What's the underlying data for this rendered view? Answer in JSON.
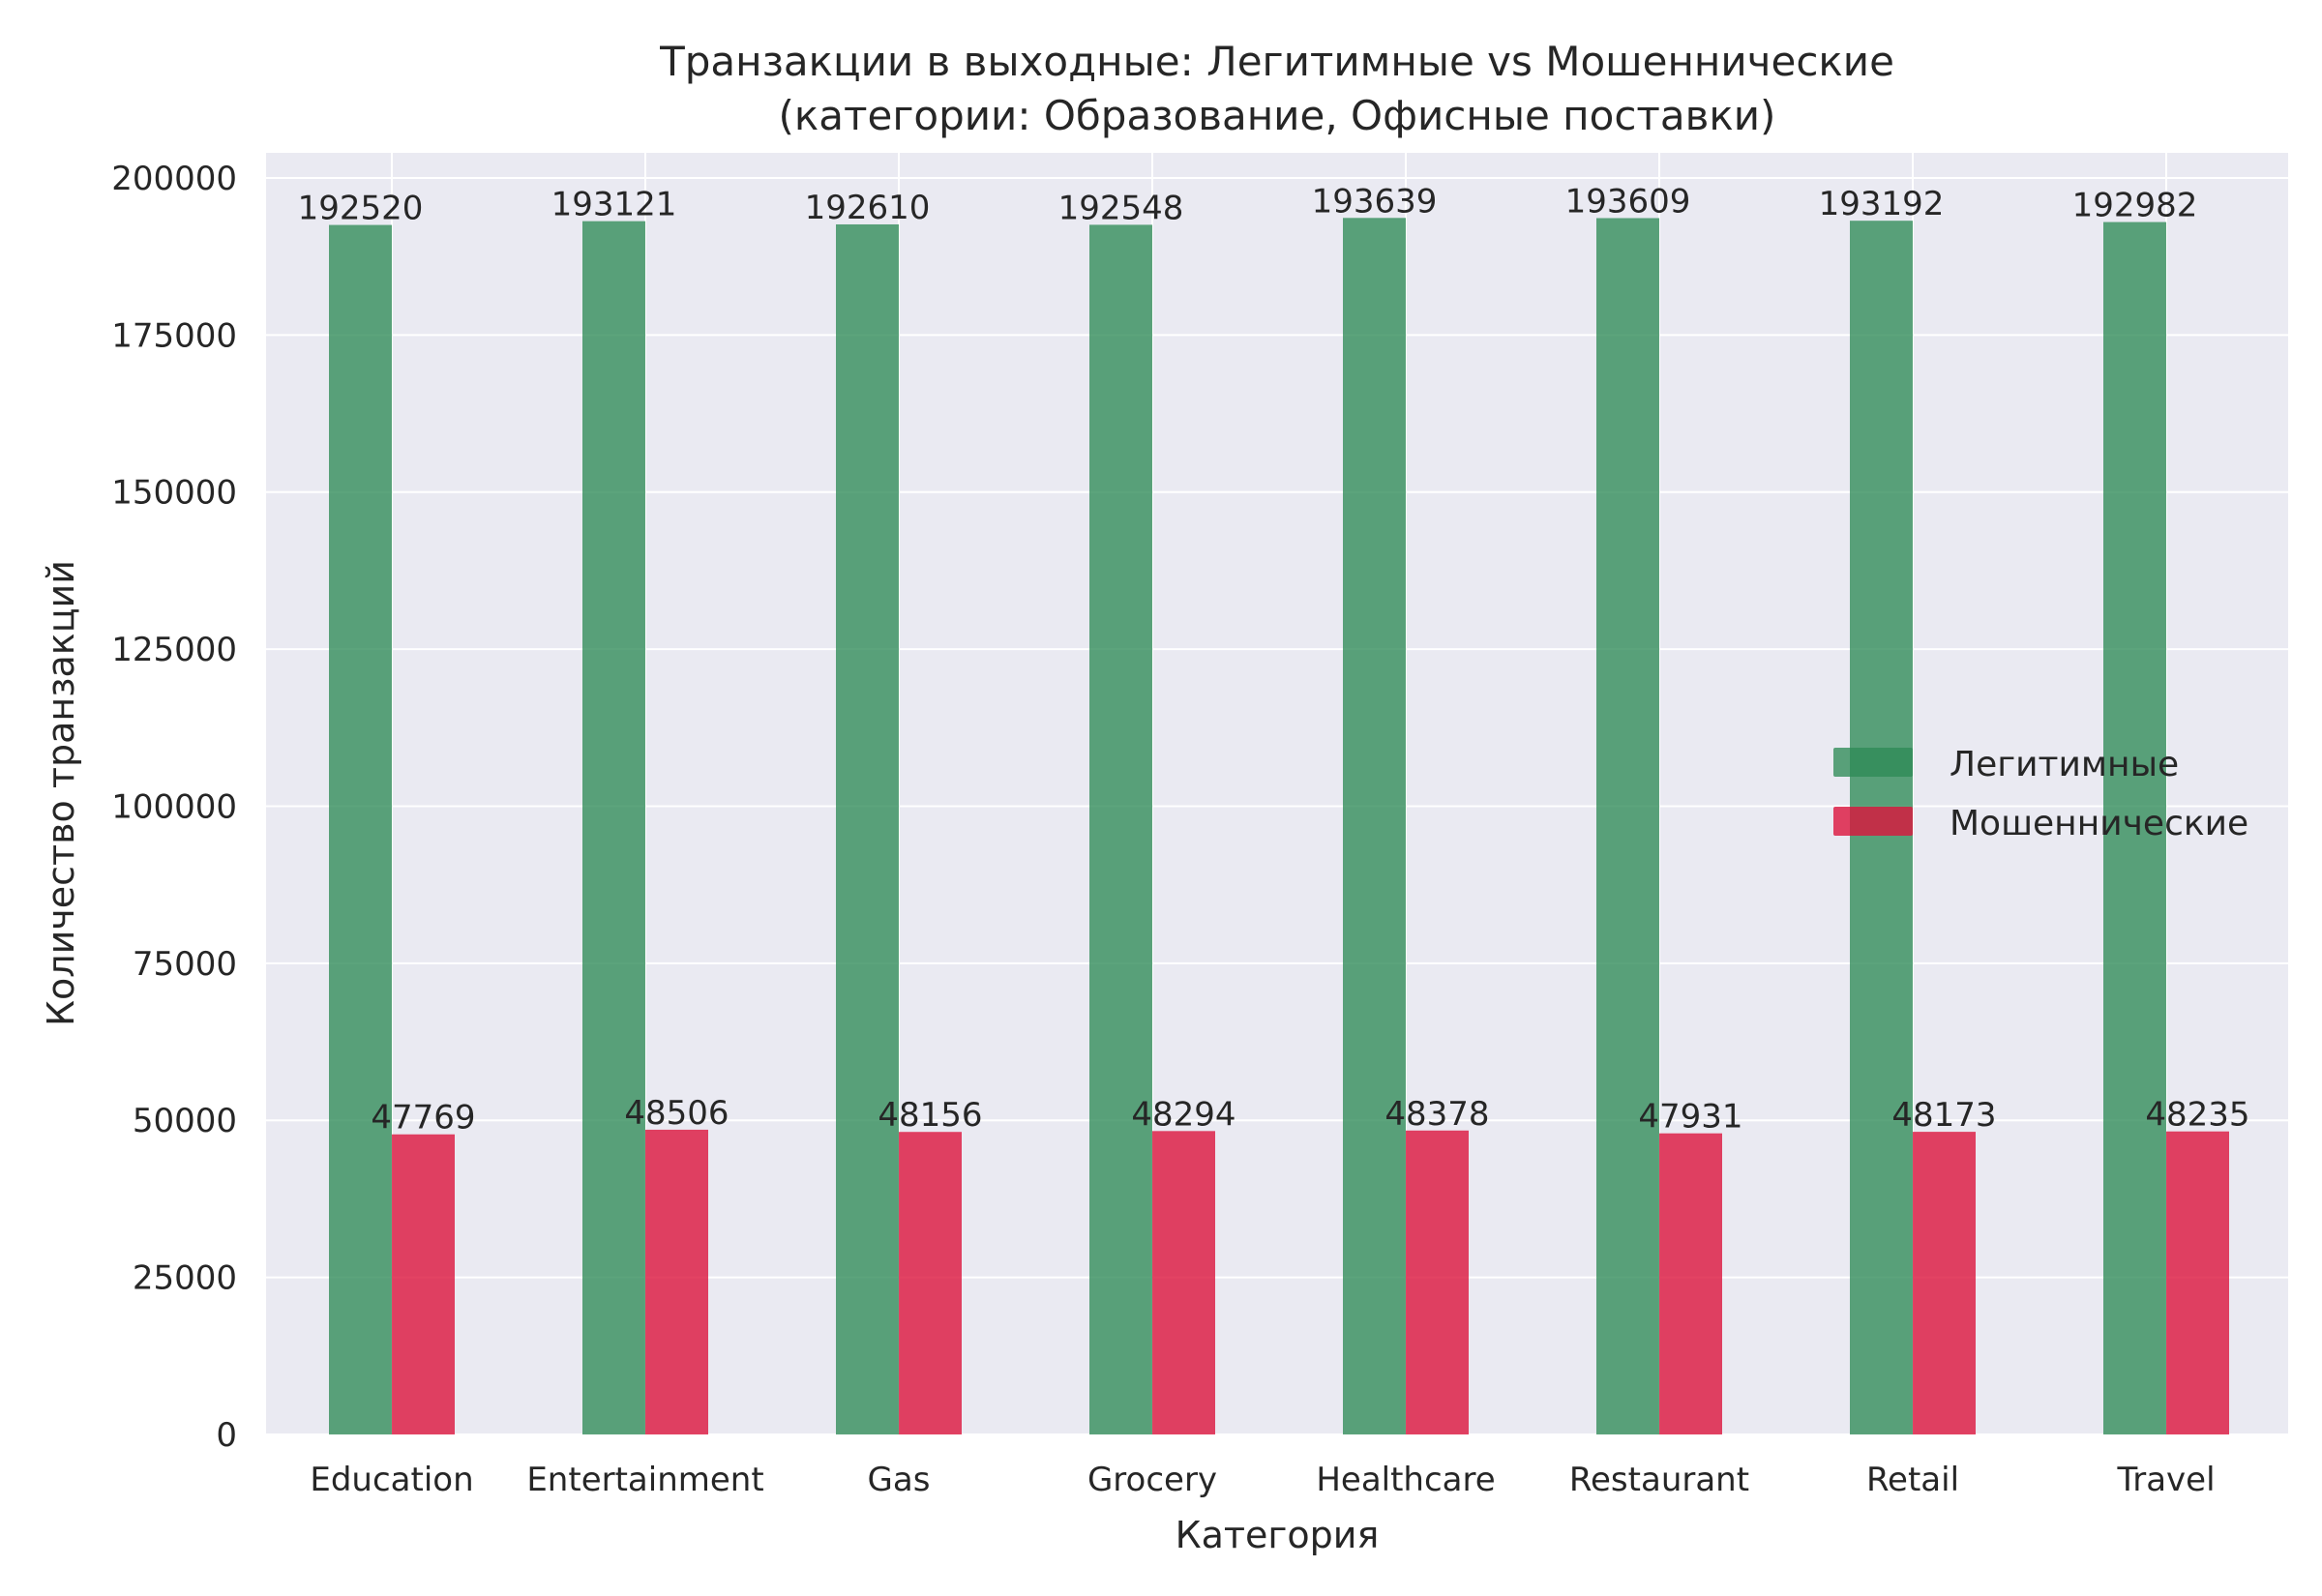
{
  "chart_data": {
    "type": "bar",
    "title": "Транзакции в выходные: Легитимные vs Мошеннические",
    "subtitle": "(категории: Образование, Офисные поставки)",
    "xlabel": "Категория",
    "ylabel": "Количество транзакций",
    "categories": [
      "Education",
      "Entertainment",
      "Gas",
      "Grocery",
      "Healthcare",
      "Restaurant",
      "Retail",
      "Travel"
    ],
    "series": [
      {
        "name": "Легитимные",
        "color": "#2e8b57",
        "values": [
          192520,
          193121,
          192610,
          192548,
          193639,
          193609,
          193192,
          192982
        ]
      },
      {
        "name": "Мошеннические",
        "color": "#dc143c",
        "values": [
          47769,
          48506,
          48156,
          48294,
          48378,
          47931,
          48173,
          48235
        ]
      }
    ],
    "ylim": [
      0,
      204000
    ],
    "yticks": [
      0,
      25000,
      50000,
      75000,
      100000,
      125000,
      150000,
      175000,
      200000
    ],
    "grid": true,
    "legend_position": "center-right",
    "plot_background": "#eaeaf2",
    "data_labels": true
  }
}
